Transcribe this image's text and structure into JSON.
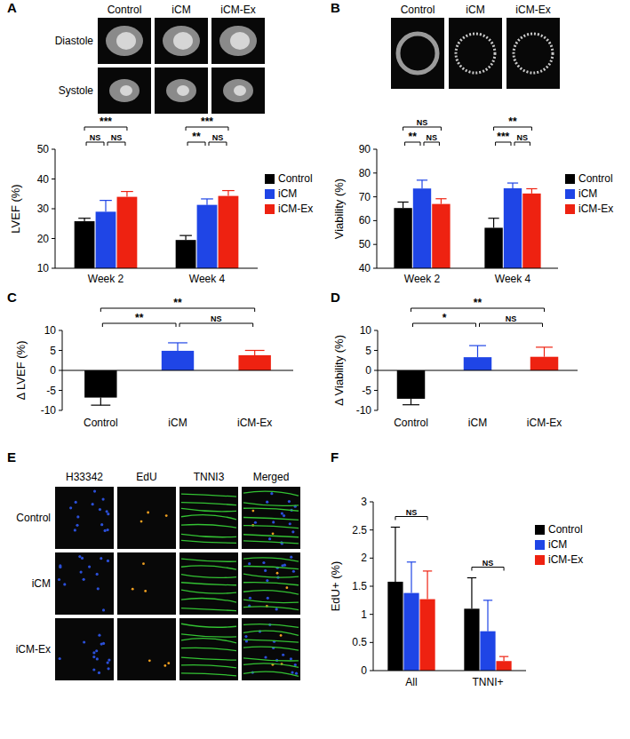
{
  "panel_labels": [
    "A",
    "B",
    "C",
    "D",
    "E",
    "F"
  ],
  "image_panels": [
    {
      "columns": [
        "Control",
        "iCM",
        "iCM-Ex"
      ],
      "rows": [
        "Diastole",
        "Systole"
      ]
    },
    {
      "columns": [
        "Control",
        "iCM",
        "iCM-Ex"
      ]
    },
    {
      "columns": [
        "H33342",
        "EdU",
        "TNNI3",
        "Merged"
      ],
      "rows": [
        "Control",
        "iCM",
        "iCM-Ex"
      ]
    }
  ],
  "chart_data": [
    {
      "type": "bar",
      "y_label": "LVEF (%)",
      "categories": [
        "Week 2",
        "Week 4"
      ],
      "series": [
        {
          "name": "Control",
          "color": "#000000",
          "values": [
            25.8,
            19.5
          ],
          "errors": [
            1.0,
            1.5
          ]
        },
        {
          "name": "iCM",
          "color": "#1f45e6",
          "values": [
            29.0,
            31.3
          ],
          "errors": [
            3.8,
            2.0
          ]
        },
        {
          "name": "iCM-Ex",
          "color": "#ee2211",
          "values": [
            34.0,
            34.3
          ],
          "errors": [
            1.8,
            1.8
          ]
        }
      ],
      "ylim": [
        10,
        50
      ],
      "yticks": [
        10,
        20,
        30,
        40,
        50
      ],
      "legend": "right",
      "annotations": [
        {
          "category": 0,
          "from": 0,
          "to": 1,
          "label": "NS"
        },
        {
          "category": 0,
          "from": 1,
          "to": 2,
          "label": "NS"
        },
        {
          "category": 0,
          "from": 0,
          "to": 2,
          "label": "***"
        },
        {
          "category": 1,
          "from": 0,
          "to": 1,
          "label": "**"
        },
        {
          "category": 1,
          "from": 1,
          "to": 2,
          "label": "NS"
        },
        {
          "category": 1,
          "from": 0,
          "to": 2,
          "label": "***"
        }
      ]
    },
    {
      "type": "bar",
      "y_label": "Viability (%)",
      "categories": [
        "Week 2",
        "Week 4"
      ],
      "series": [
        {
          "name": "Control",
          "color": "#000000",
          "values": [
            65.3,
            57.0
          ],
          "errors": [
            2.5,
            4.0
          ]
        },
        {
          "name": "iCM",
          "color": "#1f45e6",
          "values": [
            73.5,
            73.6
          ],
          "errors": [
            3.5,
            2.2
          ]
        },
        {
          "name": "iCM-Ex",
          "color": "#ee2211",
          "values": [
            67.0,
            71.4
          ],
          "errors": [
            2.2,
            2.0
          ]
        }
      ],
      "ylim": [
        40,
        90
      ],
      "yticks": [
        40,
        50,
        60,
        70,
        80,
        90
      ],
      "legend": "right",
      "annotations": [
        {
          "category": 0,
          "from": 0,
          "to": 1,
          "label": "**"
        },
        {
          "category": 0,
          "from": 1,
          "to": 2,
          "label": "NS"
        },
        {
          "category": 0,
          "from": 0,
          "to": 2,
          "label": "NS"
        },
        {
          "category": 1,
          "from": 0,
          "to": 1,
          "label": "***"
        },
        {
          "category": 1,
          "from": 1,
          "to": 2,
          "label": "NS"
        },
        {
          "category": 1,
          "from": 0,
          "to": 2,
          "label": "**"
        }
      ]
    },
    {
      "type": "bar",
      "y_label": "Δ LVEF (%)",
      "categories": [
        "Control",
        "iCM",
        "iCM-Ex"
      ],
      "values": [
        -6.8,
        4.9,
        3.8
      ],
      "errors": [
        1.9,
        2.0,
        1.2
      ],
      "colors": [
        "#000000",
        "#1f45e6",
        "#ee2211"
      ],
      "ylim": [
        -10,
        10
      ],
      "yticks": [
        -10,
        -5,
        0,
        5,
        10
      ],
      "annotations": [
        {
          "from": 0,
          "to": 1,
          "label": "**"
        },
        {
          "from": 1,
          "to": 2,
          "label": "NS"
        },
        {
          "from": 0,
          "to": 2,
          "label": "**"
        }
      ]
    },
    {
      "type": "bar",
      "y_label": "Δ Viability (%)",
      "categories": [
        "Control",
        "iCM",
        "iCM-Ex"
      ],
      "values": [
        -7.1,
        3.3,
        3.4
      ],
      "errors": [
        1.5,
        2.9,
        2.4
      ],
      "colors": [
        "#000000",
        "#1f45e6",
        "#ee2211"
      ],
      "ylim": [
        -10,
        10
      ],
      "yticks": [
        -10,
        -5,
        0,
        5,
        10
      ],
      "annotations": [
        {
          "from": 0,
          "to": 1,
          "label": "*"
        },
        {
          "from": 1,
          "to": 2,
          "label": "NS"
        },
        {
          "from": 0,
          "to": 2,
          "label": "**"
        }
      ]
    },
    {
      "type": "bar",
      "y_label": "EdU+ (%)",
      "categories": [
        "All",
        "TNNI+"
      ],
      "series": [
        {
          "name": "Control",
          "color": "#000000",
          "values": [
            1.58,
            1.1
          ],
          "errors": [
            0.97,
            0.55
          ]
        },
        {
          "name": "iCM",
          "color": "#1f45e6",
          "values": [
            1.38,
            0.7
          ],
          "errors": [
            0.55,
            0.55
          ]
        },
        {
          "name": "iCM-Ex",
          "color": "#ee2211",
          "values": [
            1.27,
            0.17
          ],
          "errors": [
            0.5,
            0.08
          ]
        }
      ],
      "ylim": [
        0,
        3
      ],
      "yticks": [
        0,
        0.5,
        1,
        1.5,
        2,
        2.5,
        3
      ],
      "legend": "right",
      "annotations": [
        {
          "category": 0,
          "from": 0,
          "to": 2,
          "label": "NS"
        },
        {
          "category": 1,
          "from": 0,
          "to": 2,
          "label": "NS"
        }
      ]
    }
  ]
}
